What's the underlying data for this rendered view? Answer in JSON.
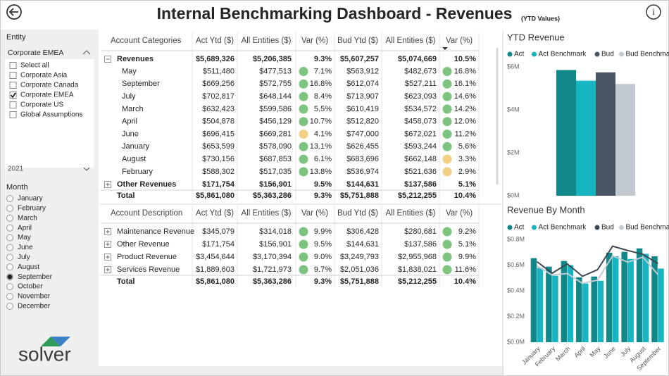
{
  "header": {
    "title": "Internal Benchmarking Dashboard - Revenues",
    "subtitle": "(YTD Values)"
  },
  "sidebar": {
    "entity_label": "Entity",
    "entity_dropdown": "Corporate EMEA",
    "entity_options": [
      {
        "label": "Select all",
        "checked": false
      },
      {
        "label": "Corporate Asia",
        "checked": false
      },
      {
        "label": "Corporate Canada",
        "checked": false
      },
      {
        "label": "Corporate EMEA",
        "checked": true
      },
      {
        "label": "Corporate US",
        "checked": false
      },
      {
        "label": "Global Assumptions",
        "checked": false
      }
    ],
    "year": "2021",
    "month_label": "Month",
    "month_options": [
      {
        "label": "January",
        "selected": false
      },
      {
        "label": "February",
        "selected": false
      },
      {
        "label": "March",
        "selected": false
      },
      {
        "label": "April",
        "selected": false
      },
      {
        "label": "May",
        "selected": false
      },
      {
        "label": "June",
        "selected": false
      },
      {
        "label": "July",
        "selected": false
      },
      {
        "label": "August",
        "selected": false
      },
      {
        "label": "September",
        "selected": true
      },
      {
        "label": "October",
        "selected": false
      },
      {
        "label": "November",
        "selected": false
      },
      {
        "label": "December",
        "selected": false
      }
    ],
    "logo": "solver"
  },
  "table1": {
    "headers": [
      "Account Categories",
      "Act Ytd ($)",
      "All Entities ($)",
      "Var (%)",
      "Bud Ytd ($)",
      "All Entities ($)",
      "Var (%)"
    ],
    "group_row": {
      "label": "Revenues",
      "cells": [
        "$5,689,326",
        "$5,206,385",
        "9.3%",
        "$5,607,257",
        "$5,074,669",
        "10.5%"
      ]
    },
    "rows": [
      {
        "label": "May",
        "cells": [
          "$511,480",
          "$477,513",
          "7.1%",
          "$563,912",
          "$482,673",
          "16.8%"
        ],
        "indicators": [
          "#7cc47f",
          "#7cc47f"
        ]
      },
      {
        "label": "September",
        "cells": [
          "$669,256",
          "$572,755",
          "16.8%",
          "$612,074",
          "$527,211",
          "16.1%"
        ],
        "indicators": [
          "#7cc47f",
          "#7cc47f"
        ]
      },
      {
        "label": "July",
        "cells": [
          "$702,817",
          "$648,144",
          "8.4%",
          "$713,907",
          "$623,093",
          "14.6%"
        ],
        "indicators": [
          "#7cc47f",
          "#7cc47f"
        ]
      },
      {
        "label": "March",
        "cells": [
          "$632,423",
          "$599,586",
          "5.5%",
          "$610,419",
          "$534,572",
          "14.2%"
        ],
        "indicators": [
          "#7cc47f",
          "#7cc47f"
        ]
      },
      {
        "label": "April",
        "cells": [
          "$504,878",
          "$456,129",
          "10.7%",
          "$512,820",
          "$458,073",
          "12.0%"
        ],
        "indicators": [
          "#7cc47f",
          "#7cc47f"
        ]
      },
      {
        "label": "June",
        "cells": [
          "$696,415",
          "$669,281",
          "4.1%",
          "$747,000",
          "$672,021",
          "11.2%"
        ],
        "indicators": [
          "#f3cf84",
          "#7cc47f"
        ]
      },
      {
        "label": "January",
        "cells": [
          "$653,599",
          "$578,090",
          "13.1%",
          "$626,455",
          "$593,244",
          "5.6%"
        ],
        "indicators": [
          "#7cc47f",
          "#7cc47f"
        ]
      },
      {
        "label": "August",
        "cells": [
          "$730,156",
          "$687,853",
          "6.1%",
          "$683,696",
          "$662,148",
          "3.3%"
        ],
        "indicators": [
          "#7cc47f",
          "#f3cf84"
        ]
      },
      {
        "label": "February",
        "cells": [
          "$588,302",
          "$517,035",
          "13.8%",
          "$536,974",
          "$521,636",
          "2.9%"
        ],
        "indicators": [
          "#7cc47f",
          "#f3cf84"
        ]
      }
    ],
    "other_row": {
      "label": "Other Revenues",
      "cells": [
        "$171,754",
        "$156,901",
        "9.5%",
        "$144,631",
        "$137,586",
        "5.1%"
      ]
    },
    "total_row": {
      "label": "Total",
      "cells": [
        "$5,861,080",
        "$5,363,286",
        "9.3%",
        "$5,751,888",
        "$5,212,255",
        "10.4%"
      ]
    }
  },
  "table2": {
    "headers": [
      "Account Description",
      "Act Ytd ($)",
      "All Entities ($)",
      "Var (%)",
      "Bud Ytd ($)",
      "All Entities ($)",
      "Var (%)"
    ],
    "rows": [
      {
        "label": "Maintenance Revenue",
        "cells": [
          "$345,079",
          "$314,018",
          "9.9%",
          "$306,428",
          "$280,681",
          "9.2%"
        ],
        "indicators": [
          "#7cc47f",
          "#7cc47f"
        ]
      },
      {
        "label": "Other Revenue",
        "cells": [
          "$171,754",
          "$156,901",
          "9.5%",
          "$144,631",
          "$137,586",
          "5.1%"
        ],
        "indicators": [
          "#7cc47f",
          "#7cc47f"
        ]
      },
      {
        "label": "Product Revenue",
        "cells": [
          "$3,454,644",
          "$3,170,394",
          "9.0%",
          "$3,249,793",
          "$2,955,968",
          "9.9%"
        ],
        "indicators": [
          "#7cc47f",
          "#7cc47f"
        ]
      },
      {
        "label": "Services Revenue",
        "cells": [
          "$1,889,603",
          "$1,721,973",
          "9.7%",
          "$2,051,036",
          "$1,838,021",
          "11.6%"
        ],
        "indicators": [
          "#7cc47f",
          "#7cc47f"
        ]
      }
    ],
    "total_row": {
      "label": "Total",
      "cells": [
        "$5,861,080",
        "$5,363,286",
        "9.3%",
        "$5,751,888",
        "$5,212,255",
        "10.4%"
      ]
    }
  },
  "chart_data": [
    {
      "type": "bar",
      "title": "YTD Revenue",
      "grid": false,
      "series": [
        {
          "name": "Act",
          "color": "#11878a",
          "values": [
            5.86
          ]
        },
        {
          "name": "Act Benchmark",
          "color": "#17b4c2",
          "values": [
            5.36
          ]
        },
        {
          "name": "Bud",
          "color": "#4a5663",
          "values": [
            5.75
          ]
        },
        {
          "name": "Bud Benchmark",
          "color": "#c3c9d1",
          "values": [
            5.21
          ]
        }
      ],
      "ylim": [
        0,
        6.3
      ],
      "yticks": [
        {
          "value": 0,
          "label": "$0M"
        },
        {
          "value": 2,
          "label": "$2M"
        },
        {
          "value": 4,
          "label": "$4M"
        },
        {
          "value": 6,
          "label": "$6M"
        }
      ]
    },
    {
      "type": "combo",
      "title": "Revenue By Month",
      "grid": false,
      "categories": [
        "January",
        "February",
        "March",
        "April",
        "May",
        "June",
        "July",
        "August",
        "September"
      ],
      "series": [
        {
          "name": "Act",
          "mark": "bar",
          "color": "#11878a",
          "values": [
            0.654,
            0.588,
            0.632,
            0.505,
            0.511,
            0.696,
            0.703,
            0.73,
            0.669
          ]
        },
        {
          "name": "Act Benchmark",
          "mark": "bar",
          "color": "#17b4c2",
          "values": [
            0.578,
            0.517,
            0.6,
            0.456,
            0.478,
            0.669,
            0.648,
            0.688,
            0.573
          ]
        },
        {
          "name": "Bud",
          "mark": "line",
          "color": "#3d4852",
          "values": [
            0.626,
            0.537,
            0.61,
            0.513,
            0.564,
            0.747,
            0.714,
            0.684,
            0.612
          ]
        },
        {
          "name": "Bud Benchmark",
          "mark": "line",
          "color": "#c3cbd3",
          "values": [
            0.593,
            0.522,
            0.535,
            0.458,
            0.483,
            0.672,
            0.623,
            0.662,
            0.527
          ]
        }
      ],
      "ylim": [
        0,
        0.8
      ],
      "yticks": [
        {
          "value": 0,
          "label": "$0.0M"
        },
        {
          "value": 0.2,
          "label": "$0.2M"
        },
        {
          "value": 0.4,
          "label": "$0.4M"
        },
        {
          "value": 0.6,
          "label": "$0.6M"
        },
        {
          "value": 0.8,
          "label": "$0.8M"
        }
      ]
    }
  ]
}
